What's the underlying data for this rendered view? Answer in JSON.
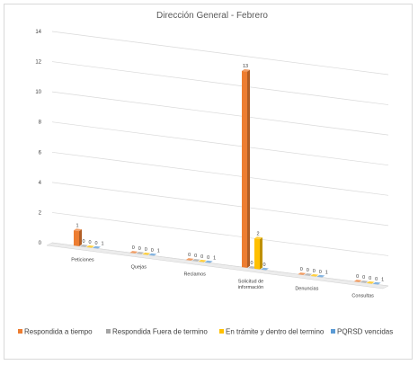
{
  "chart_data": {
    "type": "bar",
    "title": "Dirección General - Febrero",
    "xlabel": "",
    "ylabel": "",
    "ylim": [
      0,
      14
    ],
    "yticks": [
      0,
      2,
      4,
      6,
      8,
      10,
      12,
      14
    ],
    "grid": true,
    "legend_position": "bottom",
    "categories": [
      "Peticiones",
      "Quejas",
      "Reclamos",
      "Solicitud de información",
      "Denuncias",
      "Consultas"
    ],
    "series": [
      {
        "name": "Respondida a tiempo",
        "color": "#ed7d31",
        "values": [
          1,
          0,
          0,
          13,
          0,
          0
        ]
      },
      {
        "name": "Respondida Fuera de termino",
        "color": "#a5a5a5",
        "values": [
          0,
          0,
          0,
          0,
          0,
          0
        ]
      },
      {
        "name": "En trámite y dentro del termino",
        "color": "#ffc000",
        "values": [
          0,
          0,
          0,
          2,
          0,
          0
        ]
      },
      {
        "name": "PQRSD vencidas",
        "color": "#5b9bd5",
        "values": [
          0,
          0,
          0,
          0,
          0,
          0
        ]
      }
    ],
    "extra_zero_labels": [
      [
        1
      ],
      [
        1
      ],
      [
        1
      ],
      [],
      [
        1
      ],
      [
        1
      ]
    ]
  }
}
